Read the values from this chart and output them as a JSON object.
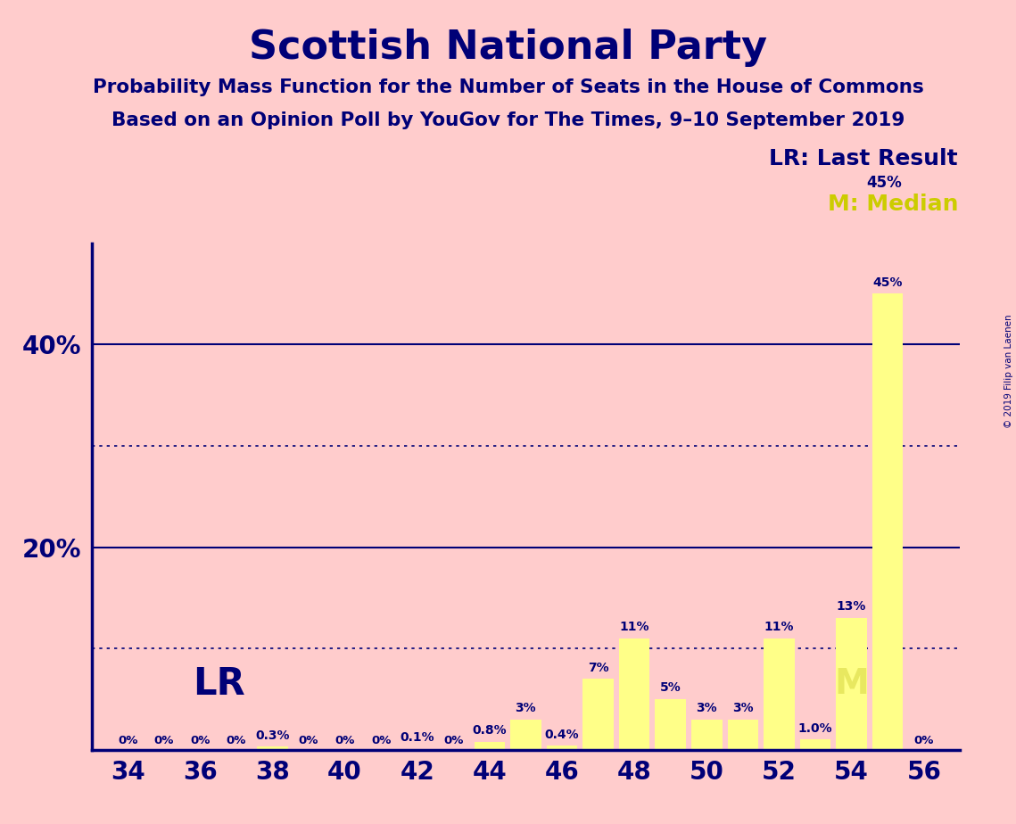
{
  "title": "Scottish National Party",
  "subtitle1": "Probability Mass Function for the Number of Seats in the House of Commons",
  "subtitle2": "Based on an Opinion Poll by YouGov for The Times, 9–10 September 2019",
  "copyright": "© 2019 Filip van Laenen",
  "seats": [
    34,
    35,
    36,
    37,
    38,
    39,
    40,
    41,
    42,
    43,
    44,
    45,
    46,
    47,
    48,
    49,
    50,
    51,
    52,
    53,
    54,
    55,
    56
  ],
  "values": [
    0.0,
    0.0,
    0.0,
    0.0,
    0.3,
    0.0,
    0.0,
    0.0,
    0.1,
    0.0,
    0.8,
    3.0,
    0.4,
    7.0,
    11.0,
    5.0,
    3.0,
    3.0,
    11.0,
    1.0,
    13.0,
    45.0,
    0.0
  ],
  "bar_labels": [
    "0%",
    "0%",
    "0%",
    "0%",
    "0.3%",
    "0%",
    "0%",
    "0%",
    "0.1%",
    "0%",
    "0.8%",
    "3%",
    "0.4%",
    "7%",
    "11%",
    "5%",
    "3%",
    "3%",
    "11%",
    "1.0%",
    "13%",
    "45%",
    "0%"
  ],
  "xtick_positions": [
    34,
    36,
    38,
    40,
    42,
    44,
    46,
    48,
    50,
    52,
    54,
    56
  ],
  "bar_color": "#ffff88",
  "last_result_seat": 35,
  "median_seat": 54,
  "background_color": "#ffcccc",
  "text_color": "#000077",
  "axis_color": "#000077",
  "grid_solid_color": "#000077",
  "grid_dot_color": "#000077",
  "ylim_max": 50,
  "legend_lr": "LR: Last Result",
  "legend_45pct": "45%",
  "legend_m": "M: Median",
  "lr_label": "LR",
  "m_label": "M",
  "copyright_text": "© 2019 Filip van Laenen"
}
